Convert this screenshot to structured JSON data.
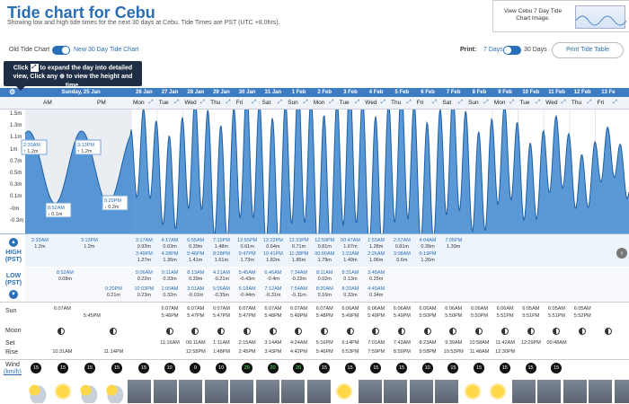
{
  "header": {
    "title": "Tide chart for Cebu",
    "subtitle": "Showing low and high tide times for the next 30 days at Cebu. Tide Times are PST (UTC +8.0hrs).",
    "thumb_link": "View Cebu 7 Day Tide Chart Image."
  },
  "toggles": {
    "old_label": "Old Tide Chart",
    "new_label": "New 30 Day Tide Chart",
    "print_label": "Print:",
    "days7": "7 Days",
    "days30": "30 Days",
    "print_button": "Print Tide Table"
  },
  "tooltip": {
    "line1a": "Click",
    "line1b": "to expand the day into detailed",
    "line2": "view, Click any ⊕ to view the height and time."
  },
  "dates": [
    "Sunday, 25 Jan",
    "26 Jan",
    "27 Jan",
    "28 Jan",
    "29 Jan",
    "30 Jan",
    "31 Jan",
    "1 Feb",
    "2 Feb",
    "3 Feb",
    "4 Feb",
    "5 Feb",
    "6 Feb",
    "7 Feb",
    "8 Feb",
    "9 Feb",
    "10 Feb",
    "11 Feb",
    "12 Feb",
    "13 Fe"
  ],
  "days": [
    "AM",
    "PM",
    "Mon",
    "Tue",
    "Wed",
    "Thu",
    "Fri",
    "Sat",
    "Sun",
    "Mon",
    "Tue",
    "Wed",
    "Thu",
    "Fri",
    "Sat",
    "Sun",
    "Mon",
    "Tue",
    "Wed",
    "Thu",
    "Fri"
  ],
  "yaxis": [
    "1.5m",
    "1.3m",
    "1.1m",
    "1m",
    "0.7m",
    "0.5m",
    "0.3m",
    "0.1m",
    "-0m",
    "-0.3m"
  ],
  "chart_callouts": [
    {
      "time": "2:33AM",
      "height": "↑ 1.2m"
    },
    {
      "time": "3:13PM",
      "height": "↑ 1.2m"
    },
    {
      "time": "8:52AM",
      "height": "↓ 0.1m"
    },
    {
      "time": "9:20PM",
      "height": "↓ 0.2m"
    }
  ],
  "table": {
    "high_label": "HIGH",
    "high_sub": "(PST)",
    "low_label": "LOW",
    "low_sub": "(PST)",
    "up_icon": "▲",
    "down_icon": "▼",
    "highs": [
      {
        "t": "2:33AM",
        "h": "1.2m"
      },
      {
        "t": "3:13PM",
        "h": "1.2m"
      },
      {
        "t": "3:17AM",
        "h": "0.92m"
      },
      {
        "t": "3:49PM",
        "h": "1.27m"
      },
      {
        "t": "4:17AM",
        "h": "0.63m"
      },
      {
        "t": "4:28PM",
        "h": "1.35m"
      },
      {
        "t": "6:55AM",
        "h": "0.39m"
      },
      {
        "t": "5:46PM",
        "h": "1.41m"
      },
      {
        "t": "7:15PM",
        "h": "1.48m"
      },
      {
        "t": "8:28PM",
        "h": "1.61m"
      },
      {
        "t": "12:55PM",
        "h": "0.61m"
      },
      {
        "t": "9:47PM",
        "h": "1.73m"
      },
      {
        "t": "12:22PM",
        "h": "0.64m"
      },
      {
        "t": "10:41PM",
        "h": "1.82m"
      },
      {
        "t": "12:33PM",
        "h": "0.71m"
      },
      {
        "t": "11:28PM",
        "h": "1.85m"
      },
      {
        "t": "12:59PM",
        "h": "0.81m"
      },
      {
        "t": "00:00AM",
        "h": "1.79m"
      },
      {
        "t": "00:47AM",
        "h": "1.67m"
      },
      {
        "t": "1:22AM",
        "h": "1.49m"
      },
      {
        "t": "1:53AM",
        "h": "1.28m"
      },
      {
        "t": "2:26AM",
        "h": "1.06m"
      },
      {
        "t": "2:57AM",
        "h": "0.81m"
      },
      {
        "t": "3:08AM",
        "h": "0.6m"
      },
      {
        "t": "4:04AM",
        "h": "0.39m"
      },
      {
        "t": "6:19PM",
        "h": "1.26m"
      },
      {
        "t": "7:05PM",
        "h": "1.39m"
      }
    ],
    "lows": [
      {
        "t": "8:52AM",
        "h": "0.08m"
      },
      {
        "t": "9:20PM",
        "h": "0.21m"
      },
      {
        "t": "9:06AM",
        "h": "0.22m"
      },
      {
        "t": "10:03PM",
        "h": "0.23m"
      },
      {
        "t": "9:11AM",
        "h": "0.33m"
      },
      {
        "t": "1:00AM",
        "h": "0.32m"
      },
      {
        "t": "8:13AM",
        "h": "0.39m"
      },
      {
        "t": "3:01AM",
        "h": "-0.01m"
      },
      {
        "t": "4:21AM",
        "h": "-0.21m"
      },
      {
        "t": "5:06AM",
        "h": "-0.35m"
      },
      {
        "t": "5:45AM",
        "h": "-0.43m"
      },
      {
        "t": "6:18AM",
        "h": "-0.44m"
      },
      {
        "t": "6:46AM",
        "h": "-0.4m"
      },
      {
        "t": "7:12AM",
        "h": "-0.31m"
      },
      {
        "t": "7:34AM",
        "h": "-0.22m"
      },
      {
        "t": "7:54AM",
        "h": "-0.11m"
      },
      {
        "t": "8:11AM",
        "h": "0.02m"
      },
      {
        "t": "8:20AM",
        "h": "0.16m"
      },
      {
        "t": "8:31AM",
        "h": "0.13m"
      },
      {
        "t": "8:20AM",
        "h": "0.33m"
      },
      {
        "t": "3:48AM",
        "h": "0.25m"
      },
      {
        "t": "4:49AM",
        "h": "0.34m"
      }
    ]
  },
  "astro": {
    "sun_label": "Sun",
    "moon_label": "Moon",
    "set_label": "Set",
    "rise_label": "Rise",
    "sunrise": [
      "6:07AM",
      "6:07AM",
      "6:07AM",
      "6:07AM",
      "6:07AM",
      "6:07AM",
      "6:07AM",
      "6:07AM",
      "6:06AM",
      "6:06AM",
      "6:06AM",
      "6:06AM",
      "6:06AM",
      "6:06AM",
      "6:06AM",
      "6:05AM",
      "6:05AM",
      "6:05AM"
    ],
    "sunset": [
      "5:45PM",
      "5:46PM",
      "5:47PM",
      "5:47PM",
      "5:47PM",
      "5:48PM",
      "5:48PM",
      "5:48PM",
      "5:49PM",
      "5:49PM",
      "5:49PM",
      "5:50PM",
      "5:50PM",
      "5:50PM",
      "5:51PM",
      "5:51PM",
      "5:51PM",
      "5:52PM"
    ],
    "moonset": [
      "11:16AM",
      "00:11AM",
      "1:11AM",
      "2:15AM",
      "3:14AM",
      "4:24AM",
      "5:16PM",
      "6:14PM",
      "7:01AM",
      "7:43AM",
      "8:23AM",
      "9:39AM",
      "10:58AM",
      "11:42AM",
      "12:29PM",
      "00:48AM"
    ],
    "moonrise": [
      "10:31AM",
      "11:14PM",
      "12:58PM",
      "1:48PM",
      "2:45PM",
      "3:43PM",
      "4:42PM",
      "5:46PM",
      "6:53PM",
      "7:59PM",
      "8:59PM",
      "9:58PM",
      "10:53PM",
      "11:48AM",
      "12:30PM"
    ]
  },
  "wind": {
    "label": "Wind",
    "unit": "(km/h)",
    "speeds": [
      "15",
      "15",
      "15",
      "15",
      "15",
      "10",
      "0",
      "10",
      "20",
      "20",
      "20",
      "15",
      "15",
      "15",
      "15",
      "10",
      "15",
      "15",
      "15",
      "15",
      "15"
    ]
  },
  "icons": {
    "gear": "gear-icon",
    "expand": "expand-icon",
    "scroll": "chevron-right-icon"
  },
  "colors": {
    "accent": "#2a6fb5",
    "strip": "#3d7cc2",
    "tooltip": "#1e2e44"
  }
}
